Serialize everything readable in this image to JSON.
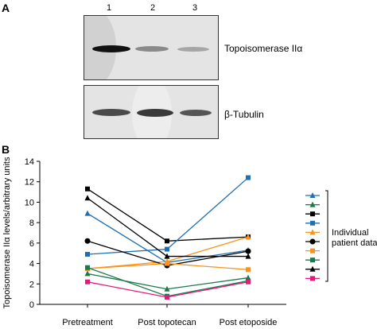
{
  "panelA": {
    "label": "A",
    "lanes": [
      "1",
      "2",
      "3"
    ],
    "blot_labels": {
      "topo": "Topoisomerase IIα",
      "tubulin": "β-Tubulin"
    },
    "topo_band_intensity": [
      1.0,
      0.55,
      0.4
    ],
    "tubulin_band_intensity": [
      0.8,
      0.85,
      0.8
    ]
  },
  "panelB": {
    "label": "B"
  },
  "legend_label": "Individual\npatient data",
  "chart_data": {
    "type": "line",
    "categories": [
      "Pretreatment",
      "Post topotecan",
      "Post etoposide"
    ],
    "ylabel": "Topoisomerase IIα levels/arbitrary units",
    "xlabel": "",
    "ylim": [
      0,
      14
    ],
    "yticks": [
      0,
      2,
      4,
      6,
      8,
      10,
      12,
      14
    ],
    "grid": false,
    "series": [
      {
        "color": "#1f6fb5",
        "marker": "triangle",
        "values": [
          8.9,
          4.1,
          5.3
        ]
      },
      {
        "color": "#1a7a4a",
        "marker": "triangle",
        "values": [
          3.0,
          1.5,
          2.6
        ]
      },
      {
        "color": "#000000",
        "marker": "square",
        "values": [
          11.3,
          6.2,
          6.6
        ]
      },
      {
        "color": "#1f6fb5",
        "marker": "square",
        "values": [
          4.9,
          5.4,
          12.4
        ]
      },
      {
        "color": "#f7931e",
        "marker": "triangle",
        "values": [
          3.5,
          4.2,
          6.6
        ]
      },
      {
        "color": "#000000",
        "marker": "circle",
        "values": [
          6.2,
          3.8,
          5.2
        ]
      },
      {
        "color": "#f7931e",
        "marker": "square",
        "values": [
          3.5,
          4.0,
          3.4
        ]
      },
      {
        "color": "#1a7a4a",
        "marker": "square",
        "values": [
          3.6,
          0.8,
          2.3
        ]
      },
      {
        "color": "#000000",
        "marker": "triangle",
        "values": [
          10.4,
          4.7,
          4.7
        ]
      },
      {
        "color": "#e6197a",
        "marker": "square",
        "values": [
          2.2,
          0.7,
          2.2
        ]
      }
    ]
  }
}
